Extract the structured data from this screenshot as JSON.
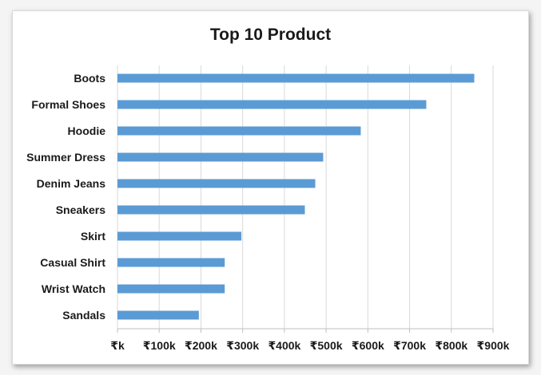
{
  "colors": {
    "bar": "#5b9bd5",
    "grid": "#d9d9d9",
    "axis": "#bfbfbf",
    "text": "#1a1a1a"
  },
  "chart_data": {
    "type": "bar",
    "orientation": "horizontal",
    "title": "Top 10 Product",
    "xlabel": "",
    "ylabel": "",
    "categories": [
      "Boots",
      "Formal Shoes",
      "Hoodie",
      "Summer Dress",
      "Denim Jeans",
      "Sneakers",
      "Skirt",
      "Casual Shirt",
      "Wrist Watch",
      "Sandals"
    ],
    "values": [
      855000,
      740000,
      583000,
      493000,
      474000,
      449000,
      297000,
      257000,
      257000,
      195000
    ],
    "xlim": [
      0,
      900000
    ],
    "xticks": [
      0,
      100000,
      200000,
      300000,
      400000,
      500000,
      600000,
      700000,
      800000,
      900000
    ],
    "xtick_labels": [
      "₹k",
      "₹100k",
      "₹200k",
      "₹300k",
      "₹400k",
      "₹500k",
      "₹600k",
      "₹700k",
      "₹800k",
      "₹900k"
    ],
    "grid": "vertical",
    "legend": "none"
  }
}
